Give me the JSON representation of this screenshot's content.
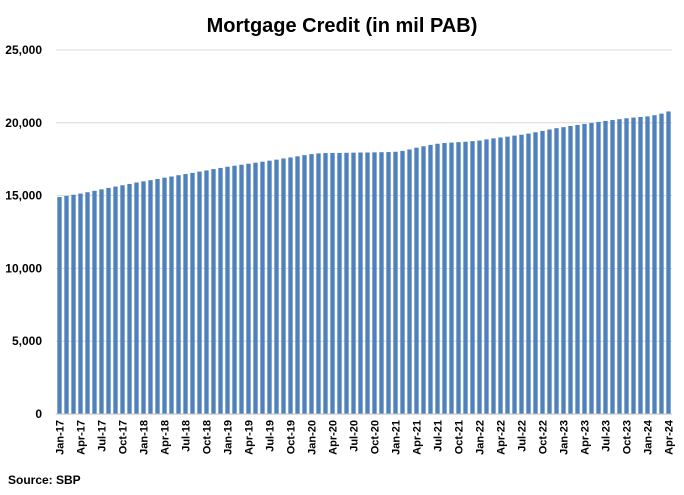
{
  "chart_data": {
    "type": "bar",
    "title": "Mortgage Credit (in mil PAB)",
    "xlabel": "",
    "ylabel": "",
    "source": "Source: SBP",
    "ylim": [
      0,
      25000
    ],
    "yticks": [
      "0",
      "5,000",
      "10,000",
      "15,000",
      "20,000",
      "25,000"
    ],
    "grid": true,
    "bar_color": "#4f81bd",
    "categories": [
      "Jan-17",
      "Feb-17",
      "Mar-17",
      "Apr-17",
      "May-17",
      "Jun-17",
      "Jul-17",
      "Aug-17",
      "Sep-17",
      "Oct-17",
      "Nov-17",
      "Dec-17",
      "Jan-18",
      "Feb-18",
      "Mar-18",
      "Apr-18",
      "May-18",
      "Jun-18",
      "Jul-18",
      "Aug-18",
      "Sep-18",
      "Oct-18",
      "Nov-18",
      "Dec-18",
      "Jan-19",
      "Feb-19",
      "Mar-19",
      "Apr-19",
      "May-19",
      "Jun-19",
      "Jul-19",
      "Aug-19",
      "Sep-19",
      "Oct-19",
      "Nov-19",
      "Dec-19",
      "Jan-20",
      "Feb-20",
      "Mar-20",
      "Apr-20",
      "May-20",
      "Jun-20",
      "Jul-20",
      "Aug-20",
      "Sep-20",
      "Oct-20",
      "Nov-20",
      "Dec-20",
      "Jan-21",
      "Feb-21",
      "Mar-21",
      "Apr-21",
      "May-21",
      "Jun-21",
      "Jul-21",
      "Aug-21",
      "Sep-21",
      "Oct-21",
      "Nov-21",
      "Dec-21",
      "Jan-22",
      "Feb-22",
      "Mar-22",
      "Apr-22",
      "May-22",
      "Jun-22",
      "Jul-22",
      "Aug-22",
      "Sep-22",
      "Oct-22",
      "Nov-22",
      "Dec-22",
      "Jan-23",
      "Feb-23",
      "Mar-23",
      "Apr-23",
      "May-23",
      "Jun-23",
      "Jul-23",
      "Aug-23",
      "Sep-23",
      "Oct-23",
      "Nov-23",
      "Dec-23",
      "Jan-24",
      "Feb-24",
      "Mar-24",
      "Apr-24"
    ],
    "tick_labels": [
      "Jan-17",
      "Apr-17",
      "Jul-17",
      "Oct-17",
      "Jan-18",
      "Apr-18",
      "Jul-18",
      "Oct-18",
      "Jan-19",
      "Apr-19",
      "Jul-19",
      "Oct-19",
      "Jan-20",
      "Apr-20",
      "Jul-20",
      "Oct-20",
      "Jan-21",
      "Apr-21",
      "Jul-21",
      "Oct-21",
      "Jan-22",
      "Apr-22",
      "Jul-22",
      "Oct-22",
      "Jan-23",
      "Apr-23",
      "Jul-23",
      "Oct-23",
      "Jan-24",
      "Apr-24"
    ],
    "values": [
      14900,
      14980,
      15060,
      15140,
      15230,
      15330,
      15430,
      15530,
      15620,
      15710,
      15800,
      15900,
      15980,
      16060,
      16140,
      16230,
      16310,
      16400,
      16480,
      16560,
      16650,
      16730,
      16820,
      16900,
      16980,
      17050,
      17120,
      17190,
      17260,
      17330,
      17400,
      17470,
      17550,
      17620,
      17700,
      17780,
      17850,
      17900,
      17920,
      17930,
      17930,
      17940,
      17950,
      17960,
      17960,
      17970,
      17980,
      17990,
      18010,
      18070,
      18170,
      18290,
      18390,
      18480,
      18560,
      18610,
      18640,
      18670,
      18700,
      18740,
      18780,
      18860,
      18930,
      18990,
      19050,
      19120,
      19180,
      19260,
      19350,
      19440,
      19540,
      19630,
      19700,
      19780,
      19850,
      19920,
      19990,
      20060,
      20130,
      20190,
      20250,
      20310,
      20360,
      20400,
      20440,
      20520,
      20630,
      20780
    ]
  }
}
